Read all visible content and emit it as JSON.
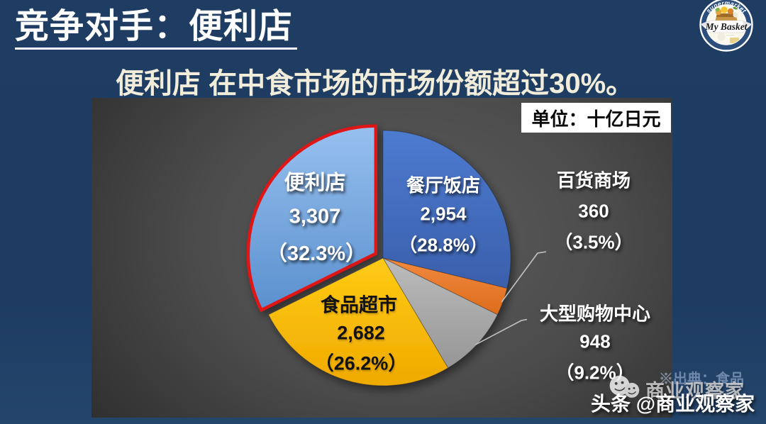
{
  "title": "竞争对手：便利店",
  "subtitle": "便利店 在中食市场的市场份额超过30%。",
  "unit_label": "单位：十亿日元",
  "logo": {
    "top_text": "supermarket",
    "name": "My Basket"
  },
  "watermarks": {
    "source_note": "※出典：食品",
    "wechat_text": "商业观察家",
    "toutiao_text": "头条 @商业观察家"
  },
  "colors": {
    "background": "#1f3d63",
    "panel_dark": "#3d3d3d",
    "title": "#ffffff",
    "subtitle": "#f1edda",
    "highlight_border": "#e01515"
  },
  "chart_data": {
    "type": "pie",
    "unit": "十亿日元",
    "title": "便利店 在中食市场的市场份额超过30%。",
    "legend_position": "none",
    "start_angle_deg": 0,
    "clockwise": true,
    "slices": [
      {
        "label": "餐厅饭店",
        "value": 2954,
        "value_text": "2,954",
        "pct": 28.8,
        "pct_text": "（28.8%）",
        "color": "#4472c4",
        "color_light": "#4d7bd0",
        "color_dark": "#3a5fab",
        "exploded": false
      },
      {
        "label": "百货商场",
        "value": 360,
        "value_text": "360",
        "pct": 3.5,
        "pct_text": "（3.5%）",
        "color": "#ed7d31",
        "color_light": "#f18a3f",
        "color_dark": "#dd6c1c",
        "exploded": false
      },
      {
        "label": "大型购物中心",
        "value": 948,
        "value_text": "948",
        "pct": 9.2,
        "pct_text": "（9.2%）",
        "color": "#a6a6a6",
        "color_light": "#bcbcbc",
        "color_dark": "#969696",
        "exploded": false
      },
      {
        "label": "食品超市",
        "value": 2682,
        "value_text": "2,682",
        "pct": 26.2,
        "pct_text": "（26.2%）",
        "color": "#ffc000",
        "color_light": "#ffcb15",
        "color_dark": "#efaa00",
        "exploded": false
      },
      {
        "label": "便利店",
        "value": 3307,
        "value_text": "3,307",
        "pct": 32.3,
        "pct_text": "（32.3%）",
        "color": "#6fa8dc",
        "color_light": "#97c0ef",
        "color_dark": "#5a90ce",
        "exploded": true,
        "border_color": "#e01515"
      }
    ]
  }
}
